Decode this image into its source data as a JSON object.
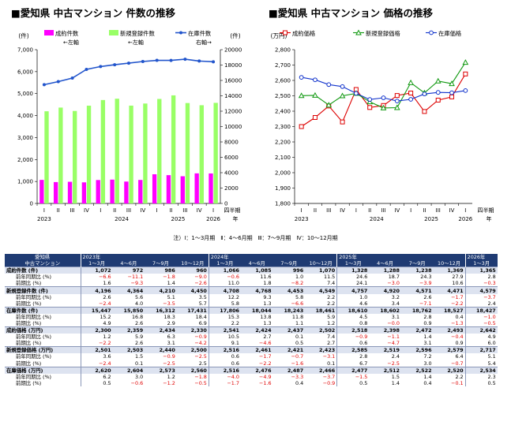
{
  "chart_data": [
    {
      "type": "bar+line",
      "title": "■愛知県 中古マンション 件数の推移",
      "left_axis_unit": "(件)",
      "right_axis_unit": "(件)",
      "ylim": [
        0,
        7000
      ],
      "y2lim": [
        0,
        20000
      ],
      "yticks": [
        "0",
        "1,000",
        "2,000",
        "3,000",
        "4,000",
        "5,000",
        "6,000",
        "7,000"
      ],
      "y2ticks": [
        "0",
        "2000",
        "4000",
        "6000",
        "8000",
        "10000",
        "12000",
        "14000",
        "16000",
        "18000",
        "20000"
      ],
      "quarters": [
        "I",
        "II",
        "III",
        "IV",
        "I",
        "II",
        "III",
        "IV",
        "I",
        "II",
        "III",
        "IV",
        "I"
      ],
      "years": [
        {
          "label": "2023",
          "at": 0
        },
        {
          "label": "2024",
          "at": 5.5
        },
        {
          "label": "2025",
          "at": 9.5
        },
        {
          "label": "2026",
          "at": 12
        }
      ],
      "xaxis_label": [
        "四半期",
        "年"
      ],
      "legend": [
        {
          "name": "成約件数",
          "sub": "←左軸",
          "color": "#ff00ff",
          "kind": "bar"
        },
        {
          "name": "新規登録件数",
          "sub": "←左軸",
          "color": "#99ff66",
          "kind": "bar"
        },
        {
          "name": "在庫件数",
          "sub": "右軸→",
          "color": "#2255cc",
          "kind": "line"
        }
      ],
      "series": [
        {
          "name": "成約件数",
          "axis": "left",
          "values": [
            1072,
            972,
            986,
            960,
            1066,
            1085,
            996,
            1070,
            1328,
            1288,
            1238,
            1369,
            1365
          ]
        },
        {
          "name": "新規登録件数",
          "axis": "left",
          "values": [
            4196,
            4364,
            4210,
            4450,
            4708,
            4768,
            4453,
            4549,
            4757,
            4920,
            4571,
            4471,
            4579
          ]
        },
        {
          "name": "在庫件数",
          "axis": "right",
          "values": [
            15447,
            15850,
            16312,
            17431,
            17806,
            18044,
            18243,
            18461,
            18610,
            18602,
            18762,
            18527,
            18427
          ]
        }
      ]
    },
    {
      "type": "line",
      "title": "■愛知県 中古マンション 価格の推移",
      "axis_unit": "(万円)",
      "ylim": [
        1800,
        2800
      ],
      "yticks": [
        "1,800",
        "1,900",
        "2,000",
        "2,100",
        "2,200",
        "2,300",
        "2,400",
        "2,500",
        "2,600",
        "2,700",
        "2,800"
      ],
      "quarters": [
        "I",
        "II",
        "III",
        "IV",
        "I",
        "II",
        "III",
        "IV",
        "I",
        "II",
        "III",
        "IV",
        "I"
      ],
      "years": [
        {
          "label": "2023",
          "at": 0
        },
        {
          "label": "2024",
          "at": 5.5
        },
        {
          "label": "2025",
          "at": 9.5
        },
        {
          "label": "2026",
          "at": 12
        }
      ],
      "xaxis_label": [
        "四半期",
        "年"
      ],
      "legend": [
        {
          "name": "成約価格",
          "color": "#dd0000",
          "marker": "square"
        },
        {
          "name": "新規登録価格",
          "color": "#119911",
          "marker": "triangle"
        },
        {
          "name": "在庫価格",
          "color": "#1133cc",
          "marker": "circle"
        }
      ],
      "series": [
        {
          "name": "成約価格",
          "values": [
            2300,
            2359,
            2434,
            2330,
            2541,
            2424,
            2437,
            2502,
            2518,
            2398,
            2472,
            2493,
            2642
          ]
        },
        {
          "name": "新規登録価格",
          "values": [
            2501,
            2503,
            2440,
            2500,
            2516,
            2461,
            2421,
            2423,
            2585,
            2519,
            2596,
            2579,
            2717
          ]
        },
        {
          "name": "在庫価格",
          "values": [
            2620,
            2604,
            2573,
            2560,
            2516,
            2476,
            2487,
            2466,
            2477,
            2512,
            2522,
            2520,
            2534
          ]
        }
      ]
    }
  ],
  "note": "注）Ⅰ：1～3月期　Ⅱ：4～6月期　Ⅲ：7～9月期　Ⅳ：10～12月期",
  "table": {
    "corner": [
      "愛知県",
      "中古マンション"
    ],
    "years": [
      {
        "label": "2023年",
        "span": 4
      },
      {
        "label": "2024年",
        "span": 4
      },
      {
        "label": "2025年",
        "span": 4
      },
      {
        "label": "2026年",
        "span": 1
      }
    ],
    "quarters": [
      "1～3月",
      "4～6月",
      "7～9月",
      "10～12月",
      "1～3月",
      "4～6月",
      "7～9月",
      "10～12月",
      "1～3月",
      "4～6月",
      "7～9月",
      "10～12月",
      "1～3月"
    ],
    "rows": [
      {
        "label": "成約件数 (件)",
        "kind": "metric",
        "values": [
          "1,072",
          "972",
          "986",
          "960",
          "1,066",
          "1,085",
          "996",
          "1,070",
          "1,328",
          "1,288",
          "1,238",
          "1,369",
          "1,365"
        ]
      },
      {
        "label": "前年同期比 (%)",
        "kind": "sub",
        "values": [
          "−6.6",
          "−11.1",
          "−1.8",
          "−9.0",
          "−0.6",
          "11.6",
          "1.0",
          "11.5",
          "24.6",
          "18.7",
          "24.3",
          "27.9",
          "2.8"
        ]
      },
      {
        "label": "前期比 (%)",
        "kind": "sub",
        "values": [
          "1.6",
          "−9.3",
          "1.4",
          "−2.6",
          "11.0",
          "1.8",
          "−8.2",
          "7.4",
          "24.1",
          "−3.0",
          "−3.9",
          "10.6",
          "−0.3"
        ]
      },
      {
        "label": "新規登録件数 (件)",
        "kind": "metric",
        "values": [
          "4,196",
          "4,364",
          "4,210",
          "4,450",
          "4,708",
          "4,768",
          "4,453",
          "4,549",
          "4,757",
          "4,920",
          "4,571",
          "4,471",
          "4,579"
        ]
      },
      {
        "label": "前年同期比 (%)",
        "kind": "sub",
        "values": [
          "2.6",
          "5.6",
          "5.1",
          "3.5",
          "12.2",
          "9.3",
          "5.8",
          "2.2",
          "1.0",
          "3.2",
          "2.6",
          "−1.7",
          "−3.7"
        ]
      },
      {
        "label": "前期比 (%)",
        "kind": "sub",
        "values": [
          "−2.4",
          "4.0",
          "−3.5",
          "5.7",
          "5.8",
          "1.3",
          "−6.6",
          "2.2",
          "4.6",
          "3.4",
          "−7.1",
          "−2.2",
          "2.4"
        ]
      },
      {
        "label": "在庫件数 (件)",
        "kind": "metric",
        "values": [
          "15,447",
          "15,850",
          "16,312",
          "17,431",
          "17,806",
          "18,044",
          "18,243",
          "18,461",
          "18,610",
          "18,602",
          "18,762",
          "18,527",
          "18,427"
        ]
      },
      {
        "label": "前年同期比 (%)",
        "kind": "sub",
        "values": [
          "15.2",
          "16.8",
          "18.3",
          "18.4",
          "15.3",
          "13.8",
          "11.8",
          "5.9",
          "4.5",
          "3.1",
          "2.8",
          "0.4",
          "−1.0"
        ]
      },
      {
        "label": "前期比 (%)",
        "kind": "sub",
        "values": [
          "4.9",
          "2.6",
          "2.9",
          "6.9",
          "2.2",
          "1.3",
          "1.1",
          "1.2",
          "0.8",
          "−0.0",
          "0.9",
          "−1.3",
          "−0.5"
        ]
      },
      {
        "label": "成約価格 (万円)",
        "kind": "metric",
        "values": [
          "2,300",
          "2,359",
          "2,434",
          "2,330",
          "2,541",
          "2,424",
          "2,437",
          "2,502",
          "2,518",
          "2,398",
          "2,472",
          "2,493",
          "2,642"
        ]
      },
      {
        "label": "前年同期比 (%)",
        "kind": "sub",
        "values": [
          "1.2",
          "5.9",
          "6.3",
          "−0.9",
          "10.5",
          "2.7",
          "0.1",
          "7.4",
          "−0.9",
          "−1.1",
          "1.4",
          "−0.4",
          "4.9"
        ]
      },
      {
        "label": "前期比 (%)",
        "kind": "sub",
        "values": [
          "−2.2",
          "2.6",
          "3.1",
          "−4.2",
          "9.1",
          "−4.6",
          "0.5",
          "2.7",
          "0.6",
          "−4.7",
          "3.1",
          "0.9",
          "6.0"
        ]
      },
      {
        "label": "新規登録価格 (万円)",
        "kind": "metric",
        "values": [
          "2,501",
          "2,503",
          "2,440",
          "2,500",
          "2,516",
          "2,461",
          "2,421",
          "2,423",
          "2,585",
          "2,519",
          "2,596",
          "2,579",
          "2,717"
        ]
      },
      {
        "label": "前年同期比 (%)",
        "kind": "sub",
        "values": [
          "3.6",
          "1.5",
          "−0.9",
          "−2.5",
          "0.6",
          "−1.7",
          "−0.7",
          "−3.1",
          "2.8",
          "2.4",
          "7.2",
          "6.4",
          "5.1"
        ]
      },
      {
        "label": "前期比 (%)",
        "kind": "sub",
        "values": [
          "−2.4",
          "0.1",
          "−2.5",
          "2.5",
          "0.6",
          "−2.2",
          "−1.6",
          "0.1",
          "6.7",
          "−2.5",
          "3.0",
          "−0.7",
          "5.4"
        ]
      },
      {
        "label": "在庫価格 (万円)",
        "kind": "metric",
        "values": [
          "2,620",
          "2,604",
          "2,573",
          "2,560",
          "2,516",
          "2,476",
          "2,487",
          "2,466",
          "2,477",
          "2,512",
          "2,522",
          "2,520",
          "2,534"
        ]
      },
      {
        "label": "前年同期比 (%)",
        "kind": "sub",
        "values": [
          "6.2",
          "3.0",
          "1.2",
          "−1.8",
          "−4.0",
          "−4.9",
          "−3.3",
          "−3.7",
          "−1.5",
          "1.5",
          "1.4",
          "2.2",
          "2.3"
        ]
      },
      {
        "label": "前期比 (%)",
        "kind": "sub",
        "values": [
          "0.5",
          "−0.6",
          "−1.2",
          "−0.5",
          "−1.7",
          "−1.6",
          "0.4",
          "−0.9",
          "0.5",
          "1.4",
          "0.4",
          "−0.1",
          "0.5"
        ]
      }
    ]
  }
}
